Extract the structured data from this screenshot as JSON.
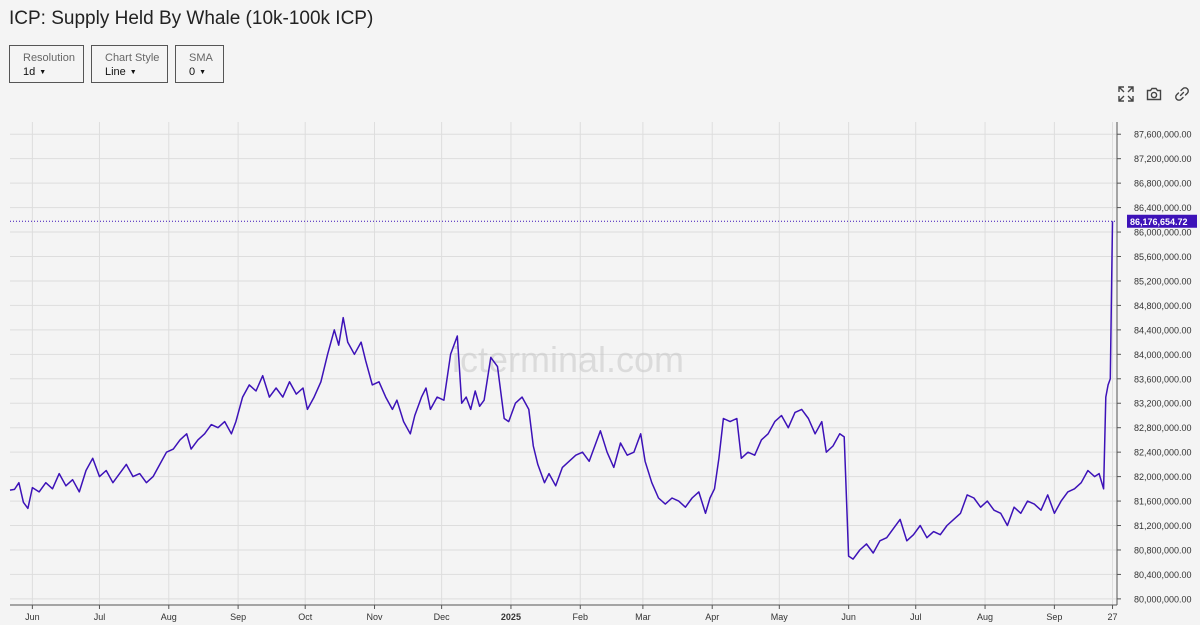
{
  "page": {
    "title": "ICP: Supply Held By Whale (10k-100k ICP)",
    "controls": [
      {
        "label": "Resolution",
        "value": "1d"
      },
      {
        "label": "Chart Style",
        "value": "Line"
      },
      {
        "label": "SMA",
        "value": "0"
      }
    ],
    "icons": [
      "expand-icon",
      "camera-icon",
      "link-icon"
    ],
    "watermark": "icterminal.com"
  },
  "colors": {
    "line": "#3d12b8",
    "price_tag": "#3d12b8",
    "grid": "#dddddd",
    "text": "#333333"
  },
  "chart_data": {
    "type": "line",
    "title": "ICP: Supply Held By Whale (10k-100k ICP)",
    "xlabel": "",
    "ylabel": "",
    "ylim": [
      79900000,
      87800000
    ],
    "y_ticks": [
      80000000,
      80400000,
      80800000,
      81200000,
      81600000,
      82000000,
      82400000,
      82800000,
      83200000,
      83600000,
      84000000,
      84400000,
      84800000,
      85200000,
      85600000,
      86000000,
      86400000,
      86800000,
      87200000,
      87600000
    ],
    "y_tick_labels": [
      "80,000,000.00",
      "80,400,000.00",
      "80,800,000.00",
      "81,200,000.00",
      "81,600,000.00",
      "82,000,000.00",
      "82,400,000.00",
      "82,800,000.00",
      "83,200,000.00",
      "83,600,000.00",
      "84,000,000.00",
      "84,400,000.00",
      "84,800,000.00",
      "85,200,000.00",
      "85,600,000.00",
      "86,000,000.00",
      "86,400,000.00",
      "86,800,000.00",
      "87,200,000.00",
      "87,600,000.00"
    ],
    "x_range": [
      "2024-05-22",
      "2025-09-29"
    ],
    "x_ticks": [
      {
        "date": "2024-06-01",
        "label": "Jun"
      },
      {
        "date": "2024-07-01",
        "label": "Jul"
      },
      {
        "date": "2024-08-01",
        "label": "Aug"
      },
      {
        "date": "2024-09-01",
        "label": "Sep"
      },
      {
        "date": "2024-10-01",
        "label": "Oct"
      },
      {
        "date": "2024-11-01",
        "label": "Nov"
      },
      {
        "date": "2024-12-01",
        "label": "Dec"
      },
      {
        "date": "2025-01-01",
        "label": "2025",
        "bold": true
      },
      {
        "date": "2025-02-01",
        "label": "Feb"
      },
      {
        "date": "2025-03-01",
        "label": "Mar"
      },
      {
        "date": "2025-04-01",
        "label": "Apr"
      },
      {
        "date": "2025-05-01",
        "label": "May"
      },
      {
        "date": "2025-06-01",
        "label": "Jun"
      },
      {
        "date": "2025-07-01",
        "label": "Jul"
      },
      {
        "date": "2025-08-01",
        "label": "Aug"
      },
      {
        "date": "2025-09-01",
        "label": "Sep"
      },
      {
        "date": "2025-09-27",
        "label": "27"
      }
    ],
    "grid": true,
    "last_value": 86176654.72,
    "last_value_label": "86,176,654.72",
    "series": [
      {
        "points": [
          [
            "2024-05-22",
            81780000
          ],
          [
            "2024-05-24",
            81790000
          ],
          [
            "2024-05-26",
            81900000
          ],
          [
            "2024-05-28",
            81580000
          ],
          [
            "2024-05-30",
            81480000
          ],
          [
            "2024-06-01",
            81820000
          ],
          [
            "2024-06-04",
            81750000
          ],
          [
            "2024-06-07",
            81900000
          ],
          [
            "2024-06-10",
            81800000
          ],
          [
            "2024-06-13",
            82050000
          ],
          [
            "2024-06-16",
            81850000
          ],
          [
            "2024-06-19",
            81950000
          ],
          [
            "2024-06-22",
            81750000
          ],
          [
            "2024-06-25",
            82100000
          ],
          [
            "2024-06-28",
            82300000
          ],
          [
            "2024-07-01",
            82000000
          ],
          [
            "2024-07-04",
            82100000
          ],
          [
            "2024-07-07",
            81900000
          ],
          [
            "2024-07-10",
            82050000
          ],
          [
            "2024-07-13",
            82200000
          ],
          [
            "2024-07-16",
            82000000
          ],
          [
            "2024-07-19",
            82050000
          ],
          [
            "2024-07-22",
            81900000
          ],
          [
            "2024-07-25",
            82000000
          ],
          [
            "2024-07-28",
            82200000
          ],
          [
            "2024-07-31",
            82400000
          ],
          [
            "2024-08-03",
            82450000
          ],
          [
            "2024-08-06",
            82600000
          ],
          [
            "2024-08-09",
            82700000
          ],
          [
            "2024-08-11",
            82450000
          ],
          [
            "2024-08-14",
            82600000
          ],
          [
            "2024-08-17",
            82700000
          ],
          [
            "2024-08-20",
            82850000
          ],
          [
            "2024-08-23",
            82800000
          ],
          [
            "2024-08-26",
            82900000
          ],
          [
            "2024-08-29",
            82700000
          ],
          [
            "2024-08-31",
            82900000
          ],
          [
            "2024-09-03",
            83300000
          ],
          [
            "2024-09-06",
            83500000
          ],
          [
            "2024-09-09",
            83400000
          ],
          [
            "2024-09-12",
            83650000
          ],
          [
            "2024-09-15",
            83300000
          ],
          [
            "2024-09-18",
            83450000
          ],
          [
            "2024-09-21",
            83300000
          ],
          [
            "2024-09-24",
            83550000
          ],
          [
            "2024-09-27",
            83350000
          ],
          [
            "2024-09-30",
            83450000
          ],
          [
            "2024-10-02",
            83100000
          ],
          [
            "2024-10-05",
            83300000
          ],
          [
            "2024-10-08",
            83550000
          ],
          [
            "2024-10-11",
            84000000
          ],
          [
            "2024-10-14",
            84400000
          ],
          [
            "2024-10-16",
            84150000
          ],
          [
            "2024-10-18",
            84600000
          ],
          [
            "2024-10-20",
            84200000
          ],
          [
            "2024-10-23",
            84000000
          ],
          [
            "2024-10-26",
            84200000
          ],
          [
            "2024-10-28",
            83900000
          ],
          [
            "2024-10-31",
            83500000
          ],
          [
            "2024-11-03",
            83550000
          ],
          [
            "2024-11-06",
            83300000
          ],
          [
            "2024-11-09",
            83100000
          ],
          [
            "2024-11-11",
            83250000
          ],
          [
            "2024-11-14",
            82900000
          ],
          [
            "2024-11-17",
            82700000
          ],
          [
            "2024-11-19",
            83000000
          ],
          [
            "2024-11-22",
            83300000
          ],
          [
            "2024-11-24",
            83450000
          ],
          [
            "2024-11-26",
            83100000
          ],
          [
            "2024-11-29",
            83300000
          ],
          [
            "2024-12-02",
            83250000
          ],
          [
            "2024-12-05",
            84000000
          ],
          [
            "2024-12-08",
            84300000
          ],
          [
            "2024-12-10",
            83200000
          ],
          [
            "2024-12-12",
            83300000
          ],
          [
            "2024-12-14",
            83100000
          ],
          [
            "2024-12-16",
            83400000
          ],
          [
            "2024-12-18",
            83150000
          ],
          [
            "2024-12-20",
            83250000
          ],
          [
            "2024-12-23",
            83950000
          ],
          [
            "2024-12-26",
            83800000
          ],
          [
            "2024-12-29",
            82950000
          ],
          [
            "2024-12-31",
            82900000
          ],
          [
            "2025-01-03",
            83200000
          ],
          [
            "2025-01-06",
            83300000
          ],
          [
            "2025-01-09",
            83100000
          ],
          [
            "2025-01-11",
            82500000
          ],
          [
            "2025-01-13",
            82200000
          ],
          [
            "2025-01-16",
            81900000
          ],
          [
            "2025-01-18",
            82050000
          ],
          [
            "2025-01-21",
            81850000
          ],
          [
            "2025-01-24",
            82150000
          ],
          [
            "2025-01-27",
            82250000
          ],
          [
            "2025-01-30",
            82350000
          ],
          [
            "2025-02-02",
            82400000
          ],
          [
            "2025-02-05",
            82250000
          ],
          [
            "2025-02-08",
            82550000
          ],
          [
            "2025-02-10",
            82750000
          ],
          [
            "2025-02-13",
            82400000
          ],
          [
            "2025-02-16",
            82150000
          ],
          [
            "2025-02-19",
            82550000
          ],
          [
            "2025-02-22",
            82350000
          ],
          [
            "2025-02-25",
            82400000
          ],
          [
            "2025-02-28",
            82700000
          ],
          [
            "2025-03-02",
            82250000
          ],
          [
            "2025-03-05",
            81900000
          ],
          [
            "2025-03-08",
            81650000
          ],
          [
            "2025-03-11",
            81550000
          ],
          [
            "2025-03-14",
            81650000
          ],
          [
            "2025-03-17",
            81600000
          ],
          [
            "2025-03-20",
            81500000
          ],
          [
            "2025-03-23",
            81650000
          ],
          [
            "2025-03-26",
            81750000
          ],
          [
            "2025-03-29",
            81400000
          ],
          [
            "2025-03-31",
            81650000
          ],
          [
            "2025-04-02",
            81800000
          ],
          [
            "2025-04-04",
            82300000
          ],
          [
            "2025-04-06",
            82950000
          ],
          [
            "2025-04-09",
            82900000
          ],
          [
            "2025-04-12",
            82950000
          ],
          [
            "2025-04-14",
            82300000
          ],
          [
            "2025-04-17",
            82400000
          ],
          [
            "2025-04-20",
            82350000
          ],
          [
            "2025-04-23",
            82600000
          ],
          [
            "2025-04-26",
            82700000
          ],
          [
            "2025-04-29",
            82900000
          ],
          [
            "2025-05-02",
            83000000
          ],
          [
            "2025-05-05",
            82800000
          ],
          [
            "2025-05-08",
            83050000
          ],
          [
            "2025-05-11",
            83100000
          ],
          [
            "2025-05-14",
            82950000
          ],
          [
            "2025-05-17",
            82700000
          ],
          [
            "2025-05-20",
            82900000
          ],
          [
            "2025-05-22",
            82400000
          ],
          [
            "2025-05-25",
            82500000
          ],
          [
            "2025-05-28",
            82700000
          ],
          [
            "2025-05-30",
            82650000
          ],
          [
            "2025-06-01",
            80700000
          ],
          [
            "2025-06-03",
            80650000
          ],
          [
            "2025-06-06",
            80800000
          ],
          [
            "2025-06-09",
            80900000
          ],
          [
            "2025-06-12",
            80750000
          ],
          [
            "2025-06-15",
            80950000
          ],
          [
            "2025-06-18",
            81000000
          ],
          [
            "2025-06-21",
            81150000
          ],
          [
            "2025-06-24",
            81300000
          ],
          [
            "2025-06-27",
            80950000
          ],
          [
            "2025-06-30",
            81050000
          ],
          [
            "2025-07-03",
            81200000
          ],
          [
            "2025-07-06",
            81000000
          ],
          [
            "2025-07-09",
            81100000
          ],
          [
            "2025-07-12",
            81050000
          ],
          [
            "2025-07-15",
            81200000
          ],
          [
            "2025-07-18",
            81300000
          ],
          [
            "2025-07-21",
            81400000
          ],
          [
            "2025-07-24",
            81700000
          ],
          [
            "2025-07-27",
            81650000
          ],
          [
            "2025-07-30",
            81500000
          ],
          [
            "2025-08-02",
            81600000
          ],
          [
            "2025-08-05",
            81450000
          ],
          [
            "2025-08-08",
            81400000
          ],
          [
            "2025-08-11",
            81200000
          ],
          [
            "2025-08-14",
            81500000
          ],
          [
            "2025-08-17",
            81400000
          ],
          [
            "2025-08-20",
            81600000
          ],
          [
            "2025-08-23",
            81550000
          ],
          [
            "2025-08-26",
            81450000
          ],
          [
            "2025-08-29",
            81700000
          ],
          [
            "2025-09-01",
            81400000
          ],
          [
            "2025-09-04",
            81600000
          ],
          [
            "2025-09-07",
            81750000
          ],
          [
            "2025-09-10",
            81800000
          ],
          [
            "2025-09-13",
            81900000
          ],
          [
            "2025-09-16",
            82100000
          ],
          [
            "2025-09-19",
            82000000
          ],
          [
            "2025-09-21",
            82050000
          ],
          [
            "2025-09-23",
            81800000
          ],
          [
            "2025-09-24",
            83300000
          ],
          [
            "2025-09-25",
            83500000
          ],
          [
            "2025-09-26",
            83600000
          ],
          [
            "2025-09-27",
            86176654
          ]
        ]
      }
    ]
  }
}
